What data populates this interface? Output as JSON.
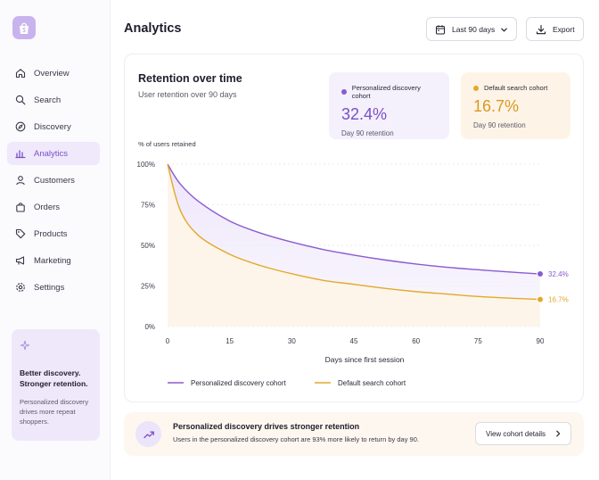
{
  "app": {
    "page_title": "Analytics"
  },
  "sidebar": {
    "items": [
      {
        "label": "Overview",
        "icon": "home-icon"
      },
      {
        "label": "Search",
        "icon": "search-icon"
      },
      {
        "label": "Discovery",
        "icon": "compass-icon"
      },
      {
        "label": "Analytics",
        "icon": "bar-chart-icon",
        "active": true
      },
      {
        "label": "Customers",
        "icon": "user-icon"
      },
      {
        "label": "Orders",
        "icon": "bag-icon"
      },
      {
        "label": "Products",
        "icon": "tag-icon"
      },
      {
        "label": "Marketing",
        "icon": "megaphone-icon"
      },
      {
        "label": "Settings",
        "icon": "gear-icon"
      }
    ],
    "promo": {
      "title_line1": "Better discovery.",
      "title_line2": "Stronger retention.",
      "body_line1": "Personalized discovery",
      "body_line2": "drives more repeat",
      "body_line3": "shoppers."
    }
  },
  "header": {
    "date_range": "Last 90 days",
    "export_label": "Export"
  },
  "card": {
    "title": "Retention over time",
    "subtitle": "User retention over 90 days",
    "stats": [
      {
        "label": "Personalized discovery cohort",
        "value": "32.4%",
        "caption": "Day 90 retention",
        "color": "#8a5bd1"
      },
      {
        "label": "Default search cohort",
        "value": "16.7%",
        "caption": "Day 90 retention",
        "color": "#e3a92b"
      }
    ]
  },
  "chart_data": {
    "type": "line",
    "ylabel": "% of users retained",
    "xlabel": "Days since first session",
    "x_ticks": [
      "0",
      "15",
      "30",
      "45",
      "60",
      "75",
      "90"
    ],
    "y_ticks": [
      "100%",
      "75%",
      "50%",
      "25%",
      "0%"
    ],
    "xlim": [
      0,
      90
    ],
    "ylim": [
      0,
      100
    ],
    "grid": "horizontal-dashed",
    "legend_position": "bottom-left",
    "series": [
      {
        "name": "Personalized discovery cohort",
        "color": "#8a5bd1",
        "end_label": "32.4%",
        "x": [
          0,
          3,
          7.5,
          15,
          22.5,
          30,
          37.5,
          45,
          52.5,
          60,
          67.5,
          75,
          82.5,
          90
        ],
        "y": [
          100,
          88,
          77,
          65,
          57.5,
          52,
          47.5,
          44,
          41,
          38.5,
          36.5,
          35,
          33.6,
          32.4
        ]
      },
      {
        "name": "Default search cohort",
        "color": "#e3a92b",
        "end_label": "16.7%",
        "x": [
          0,
          3,
          7.5,
          15,
          22.5,
          30,
          37.5,
          45,
          52.5,
          60,
          67.5,
          75,
          82.5,
          90
        ],
        "y": [
          100,
          72,
          56,
          44.5,
          37.5,
          32.5,
          28.5,
          26,
          23.5,
          21.5,
          20,
          18.5,
          17.5,
          16.7
        ]
      }
    ]
  },
  "banner": {
    "title": "Personalized discovery drives stronger retention",
    "body": "Users in the personalized discovery cohort are 93% more likely to return by day 90.",
    "button_label": "View cohort details"
  }
}
